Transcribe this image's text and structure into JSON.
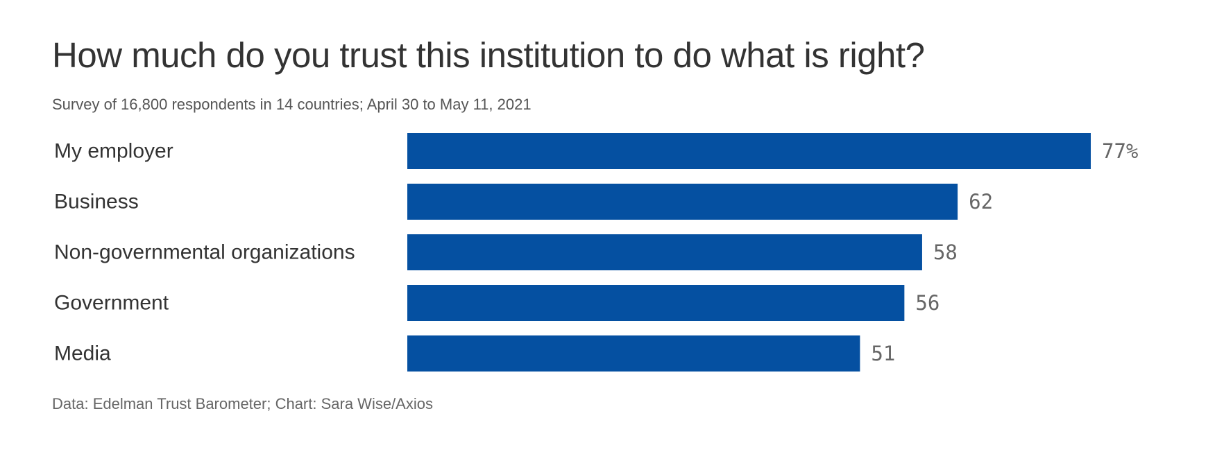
{
  "chart_data": {
    "type": "bar",
    "orientation": "horizontal",
    "title": "How much do you trust this institution to do what is right?",
    "subtitle": "Survey of 16,800 respondents in 14 countries; April 30 to May 11, 2021",
    "source": "Data: Edelman Trust Barometer; Chart: Sara Wise/Axios",
    "categories": [
      "My employer",
      "Business",
      "Non-governmental organizations",
      "Government",
      "Media"
    ],
    "values": [
      77,
      62,
      58,
      56,
      51
    ],
    "value_labels": [
      "77%",
      "62",
      "58",
      "56",
      "51"
    ],
    "xlim": [
      0,
      77
    ],
    "grid": false,
    "legend": "none",
    "bar_color": "#0550a1"
  }
}
